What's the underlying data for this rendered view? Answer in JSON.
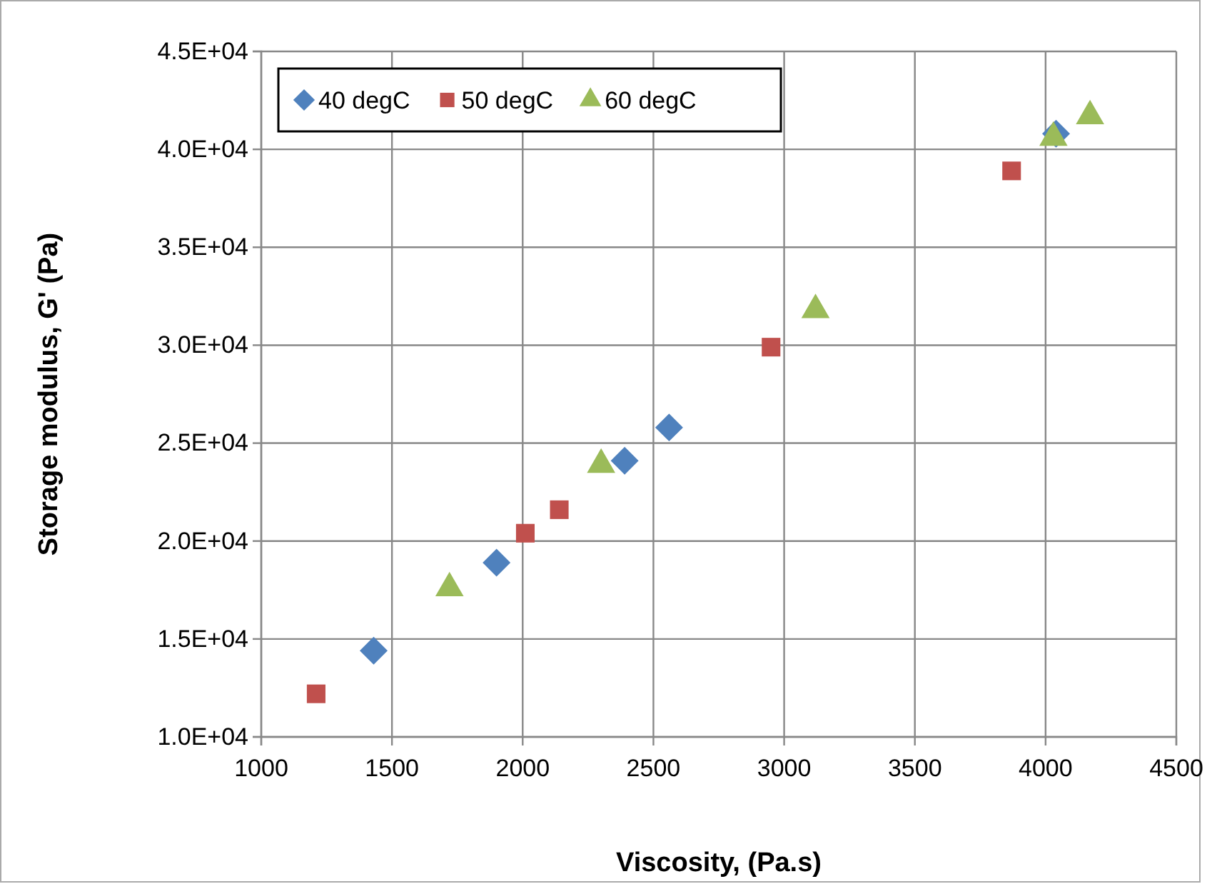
{
  "chart_data": {
    "type": "scatter",
    "xlabel": "Viscosity, (Pa.s)",
    "ylabel": "Storage modulus, G' (Pa)",
    "xlim": [
      1000,
      4500
    ],
    "xticks": [
      1000,
      1500,
      2000,
      2500,
      3000,
      3500,
      4000,
      4500
    ],
    "ylim": [
      10000,
      45000
    ],
    "yticks": [
      {
        "value": 10000,
        "label": "1.0E+04"
      },
      {
        "value": 15000,
        "label": "1.5E+04"
      },
      {
        "value": 20000,
        "label": "2.0E+04"
      },
      {
        "value": 25000,
        "label": "2.5E+04"
      },
      {
        "value": 30000,
        "label": "3.0E+04"
      },
      {
        "value": 35000,
        "label": "3.5E+04"
      },
      {
        "value": 40000,
        "label": "4.0E+04"
      },
      {
        "value": 45000,
        "label": "4.5E+04"
      }
    ],
    "grid": true,
    "legend": "top left",
    "series": [
      {
        "name": "40 degC",
        "color": "#4f81bd",
        "marker": "diamond",
        "x": [
          1430,
          1900,
          2390,
          2560,
          4040
        ],
        "values": [
          14400,
          18900,
          24100,
          25800,
          40800
        ]
      },
      {
        "name": "50 degC",
        "color": "#c0504d",
        "marker": "square",
        "x": [
          1210,
          2010,
          2140,
          2950,
          3870
        ],
        "values": [
          12200,
          20400,
          21600,
          29900,
          38900
        ]
      },
      {
        "name": "60 degC",
        "color": "#9bbb59",
        "marker": "triangle",
        "x": [
          1720,
          2300,
          3120,
          4030,
          4170
        ],
        "values": [
          17600,
          23900,
          31800,
          40600,
          41700
        ]
      }
    ]
  }
}
